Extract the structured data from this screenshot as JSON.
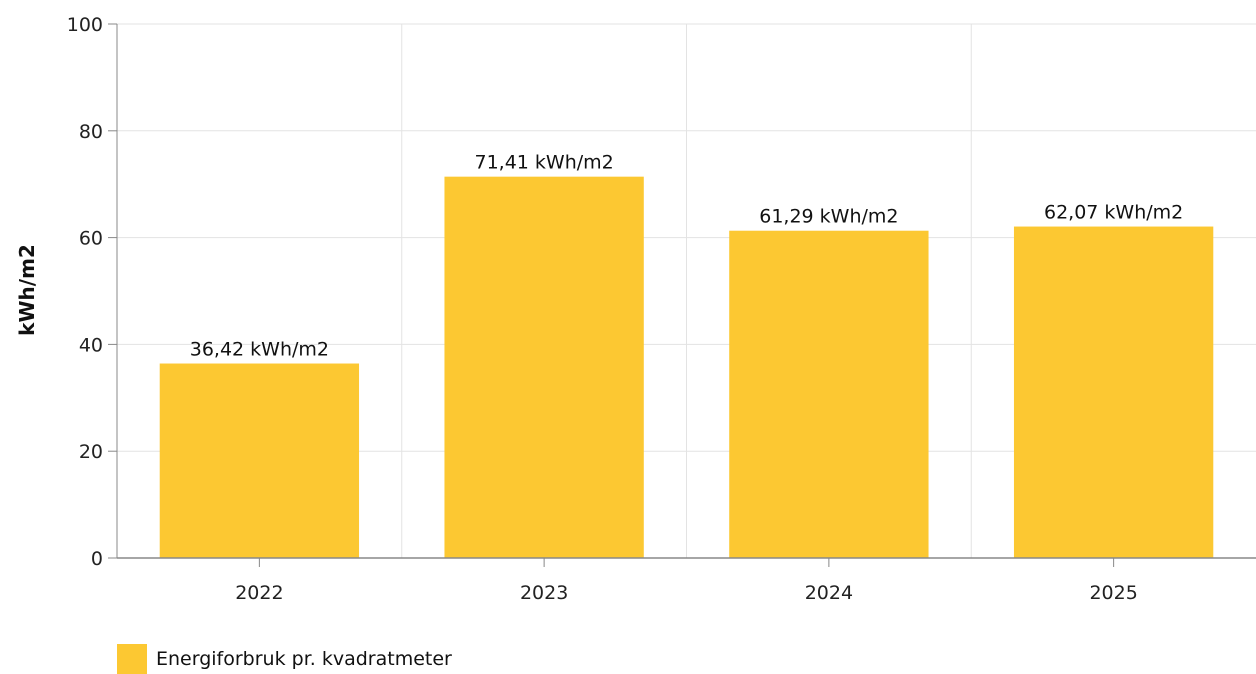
{
  "chart_data": {
    "type": "bar",
    "categories": [
      "2022",
      "2023",
      "2024",
      "2025"
    ],
    "series": [
      {
        "name": "Energiforbruk pr. kvadratmeter",
        "values": [
          36.42,
          71.41,
          61.29,
          62.07
        ],
        "labels": [
          "36,42 kWh/m2",
          "71,41 kWh/m2",
          "61,29 kWh/m2",
          "62,07 kWh/m2"
        ],
        "color": "#fcc832"
      }
    ],
    "ylabel": "kWh/m2",
    "xlabel": "",
    "ylim": [
      0,
      100
    ],
    "yticks": [
      "0",
      "20",
      "40",
      "60",
      "80",
      "100"
    ],
    "grid": true,
    "legend_position": "bottom-left"
  }
}
